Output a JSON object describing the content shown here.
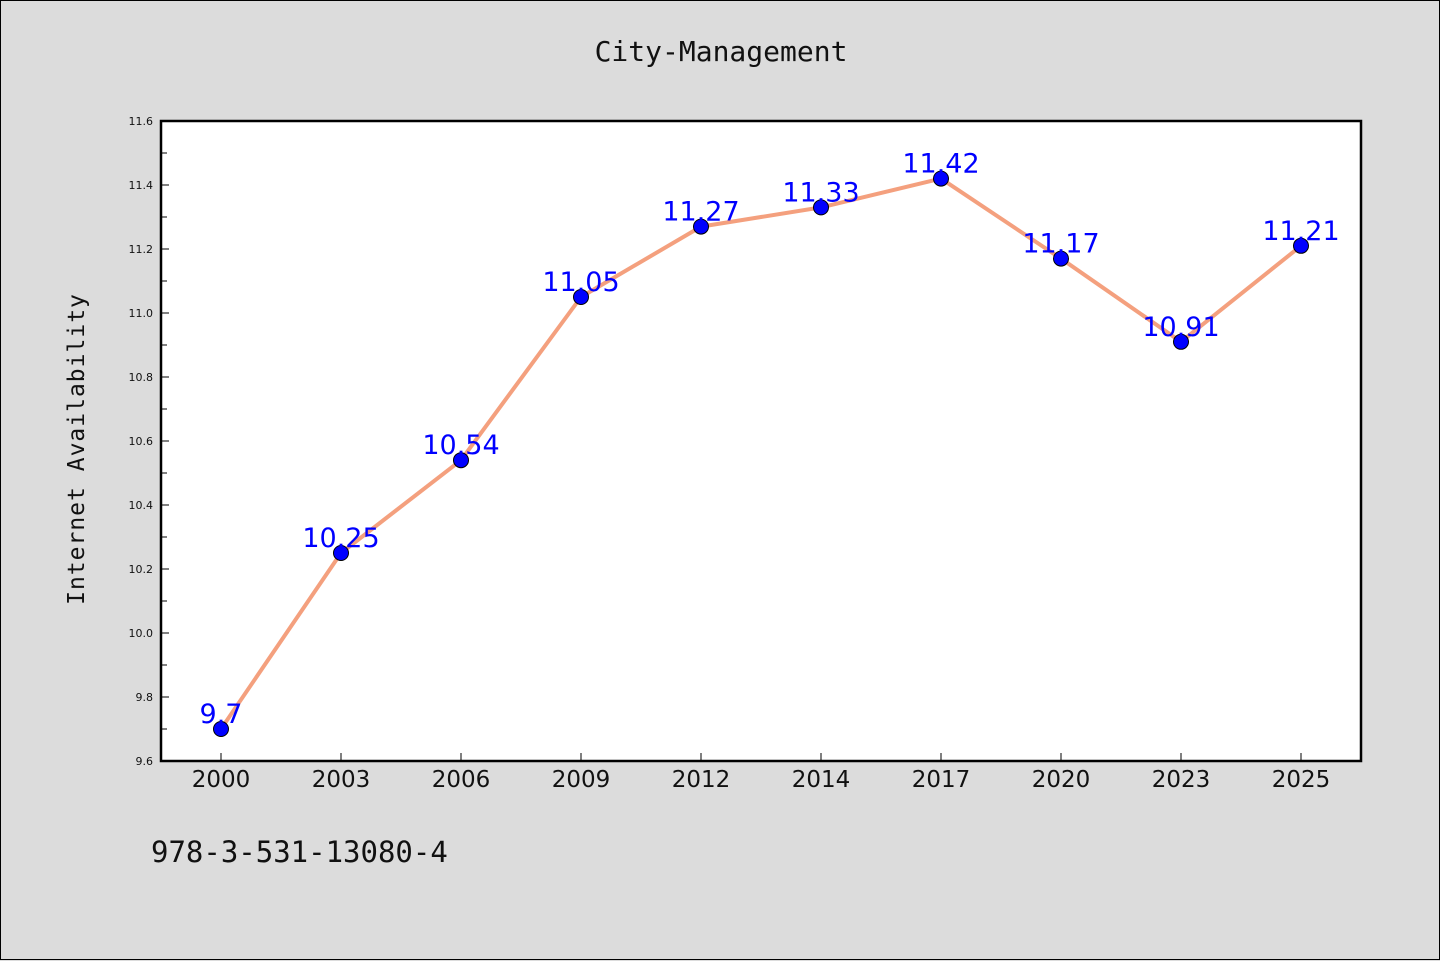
{
  "chart_data": {
    "type": "line",
    "title": "City-Management",
    "ylabel": "Internet Availability",
    "xlabel": "",
    "categories": [
      "2000",
      "2003",
      "2006",
      "2009",
      "2012",
      "2014",
      "2017",
      "2020",
      "2023",
      "2025"
    ],
    "series": [
      {
        "values": [
          9.7,
          10.25,
          10.54,
          11.05,
          11.27,
          11.33,
          11.42,
          11.17,
          10.91,
          11.21
        ],
        "line_color": "#f4a07e",
        "marker_color": "#0000ff"
      }
    ],
    "data_labels": [
      "9.7",
      "10.25",
      "10.54",
      "11.05",
      "11.27",
      "11.33",
      "11.42",
      "11.17",
      "10.91",
      "11.21"
    ],
    "data_label_color": "#0000ff",
    "ylim": [
      9.6,
      11.6
    ],
    "yticks": [
      "9.6",
      "9.8",
      "10.0",
      "10.2",
      "10.4",
      "10.6",
      "10.8",
      "11.0",
      "11.2",
      "11.4",
      "11.6"
    ],
    "grid": false,
    "legend": "none"
  },
  "footer_text": "978-3-531-13080-4"
}
